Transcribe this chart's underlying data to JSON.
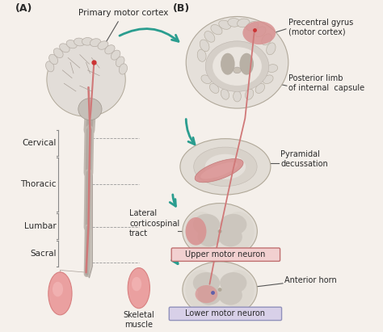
{
  "background_color": "#f5f0eb",
  "label_A": "(A)",
  "label_B": "(B)",
  "text_primary_motor_cortex": "Primary motor cortex",
  "text_precentral_gyrus": "Precentral gyrus\n(motor cortex)",
  "text_posterior_limb": "Posterior limb\nof internal  capsule",
  "text_pyramidal": "Pyramidal\ndecussation",
  "text_cervical": "Cervical",
  "text_thoracic": "Thoracic",
  "text_lumbar": "Lumbar",
  "text_sacral": "Sacral",
  "text_lateral": "Lateral\ncorticospinal\ntract",
  "text_upper_motor": "Upper motor neuron",
  "text_lower_motor": "Lower motor neuron",
  "text_anterior_horn": "Anterior horn",
  "text_skeletal_muscle": "Skeletal\nmuscle",
  "color_brain_light": "#e8e4de",
  "color_brain_mid": "#d0c8be",
  "color_brain_dark": "#b8b0a5",
  "color_brain_inner": "#c5bdb0",
  "color_spinal_outer": "#c8c2ba",
  "color_spinal_inner": "#b5afa8",
  "color_pink_highlight": "#d99090",
  "color_pink_light": "#e8b8b8",
  "color_arrow": "#2a9d8f",
  "color_upper_box_fill": "#f2d0d0",
  "color_upper_box_border": "#c07070",
  "color_lower_box_fill": "#d8d0e8",
  "color_lower_box_border": "#9090bb",
  "color_muscle": "#d88080",
  "color_muscle_light": "#eaa0a0",
  "color_line_pink": "#d07878",
  "color_text": "#2a2a2a",
  "color_bracket": "#888888",
  "color_annot_line": "#555555"
}
